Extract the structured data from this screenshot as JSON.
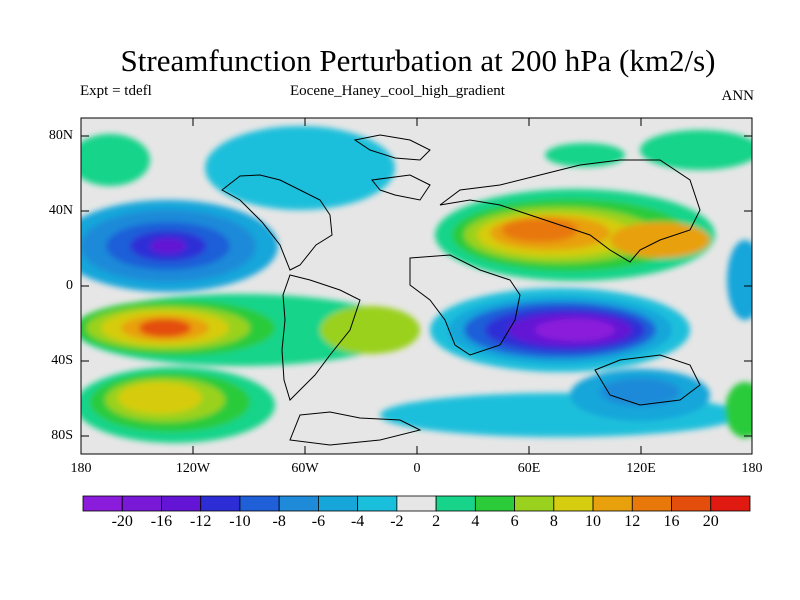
{
  "title": "Streamfunction Perturbation at 200 hPa (km2/s)",
  "left_string": "Expt = tdefl",
  "center_string": "Eocene_Haney_cool_high_gradient",
  "right_string": "ANN",
  "latitude_labels": [
    "80N",
    "40N",
    "0",
    "40S",
    "80S"
  ],
  "longitude_labels": [
    "180",
    "120W",
    "60W",
    "0",
    "60E",
    "120E",
    "180"
  ],
  "colorbar": {
    "labels": [
      "-20",
      "-16",
      "-12",
      "-10",
      "-8",
      "-6",
      "-4",
      "-2",
      "2",
      "4",
      "6",
      "8",
      "10",
      "12",
      "16",
      "20"
    ],
    "colors": [
      "#8c1cdc",
      "#7a18d8",
      "#6414d4",
      "#2d2dd6",
      "#1f5fd8",
      "#1e8ad8",
      "#16a6da",
      "#1abfdb",
      "#e6e6e6",
      "#17d48a",
      "#2bcb3a",
      "#9ad11e",
      "#d6cc10",
      "#e8a00c",
      "#e8780a",
      "#e44e0c",
      "#e01a10"
    ]
  }
}
